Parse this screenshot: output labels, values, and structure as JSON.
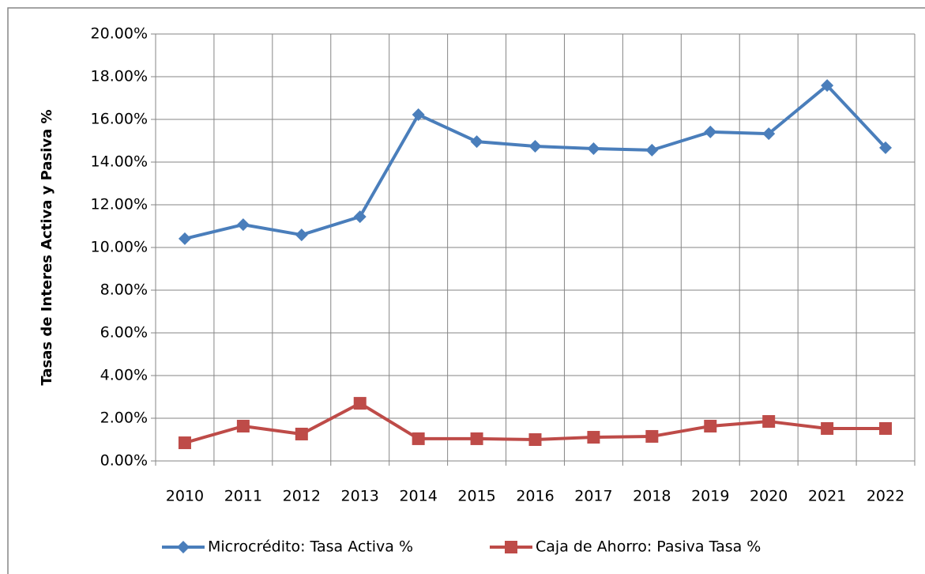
{
  "chart_data": {
    "type": "line",
    "y_label": "Tasas de Interes Activa y Pasiva %",
    "categories": [
      "2010",
      "2011",
      "2012",
      "2013",
      "2014",
      "2015",
      "2016",
      "2017",
      "2018",
      "2019",
      "2020",
      "2021",
      "2022"
    ],
    "series": [
      {
        "name": "Microcrédito: Tasa Activa %",
        "color": "#4a7ebb",
        "marker": "diamond",
        "values": [
          10.41,
          11.07,
          10.59,
          11.44,
          16.22,
          14.96,
          14.74,
          14.63,
          14.56,
          15.41,
          15.33,
          17.59,
          14.67
        ]
      },
      {
        "name": "Caja de Ahorro: Pasiva Tasa %",
        "color": "#be4b48",
        "marker": "square",
        "values": [
          0.85,
          1.63,
          1.26,
          2.7,
          1.04,
          1.04,
          1.0,
          1.11,
          1.15,
          1.63,
          1.85,
          1.52,
          1.52
        ]
      }
    ],
    "ylim": [
      0,
      20
    ],
    "yticks": [
      {
        "value": 0,
        "label": "0.00%"
      },
      {
        "value": 2,
        "label": "2.00%"
      },
      {
        "value": 4,
        "label": "4.00%"
      },
      {
        "value": 6,
        "label": "6.00%"
      },
      {
        "value": 8,
        "label": "8.00%"
      },
      {
        "value": 10,
        "label": "10.00%"
      },
      {
        "value": 12,
        "label": "12.00%"
      },
      {
        "value": 14,
        "label": "14.00%"
      },
      {
        "value": 16,
        "label": "16.00%"
      },
      {
        "value": 18,
        "label": "18.00%"
      },
      {
        "value": 20,
        "label": "20.00%"
      }
    ],
    "grid": true,
    "legend": "bottom"
  }
}
